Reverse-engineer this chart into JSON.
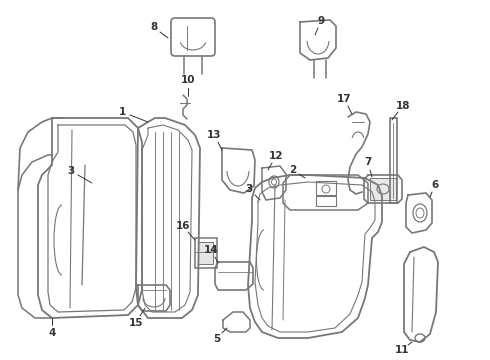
{
  "background_color": "#ffffff",
  "line_color": "#777777",
  "label_color": "#000000",
  "figsize": [
    4.9,
    3.6
  ],
  "dpi": 100
}
